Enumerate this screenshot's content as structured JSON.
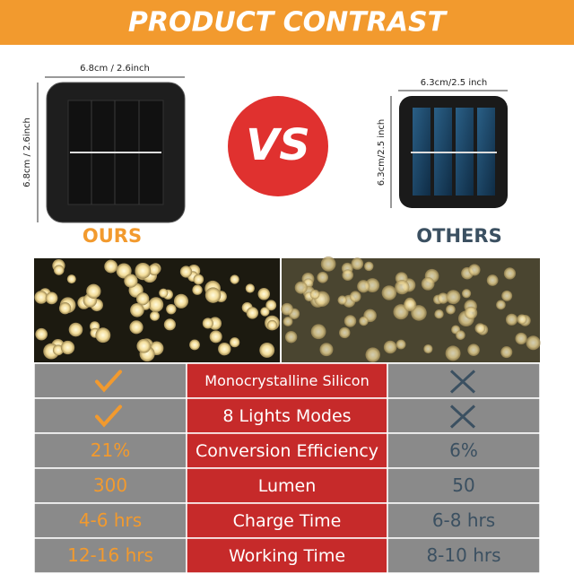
{
  "header": {
    "title": "PRODUCT CONTRAST"
  },
  "ours": {
    "label": "OURS",
    "width": "6.8cm / 2.6inch",
    "height": "6.8cm / 2.6inch"
  },
  "vs": "VS",
  "others": {
    "label": "OTHERS",
    "width": "6.3cm/2.5 inch",
    "height": "6.3cm/2.5 inch"
  },
  "table": {
    "rows": [
      {
        "feature": "Monocrystalline Silicon"
      },
      {
        "feature": "8 Lights Modes"
      },
      {
        "ours": "21%",
        "feature": "Conversion Efficiency",
        "others": "6%"
      },
      {
        "ours": "300",
        "feature": "Lumen",
        "others": "50"
      },
      {
        "ours": "4-6 hrs",
        "feature": "Charge Time",
        "others": "6-8 hrs"
      },
      {
        "ours": "12-16 hrs",
        "feature": "Working Time",
        "others": "8-10 hrs"
      }
    ]
  }
}
